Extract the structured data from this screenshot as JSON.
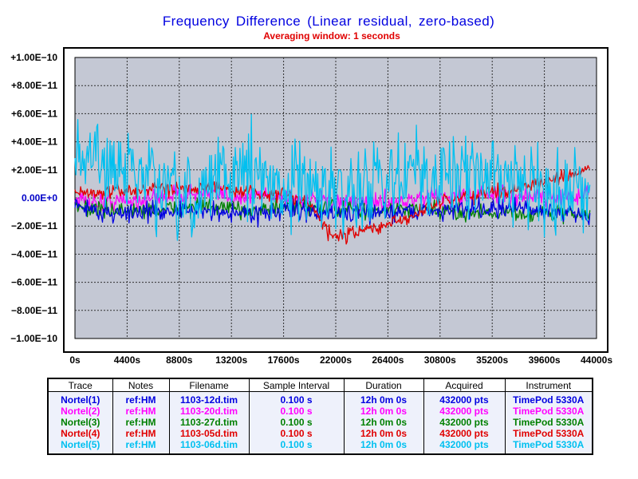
{
  "chart_data": {
    "type": "line",
    "title": "Frequency Difference (Linear residual, zero-based)",
    "subtitle": "Averaging window: 1 seconds",
    "xlabel": "",
    "ylabel": "",
    "xlim": [
      0,
      44000
    ],
    "ylim": [
      -1e-10,
      1e-10
    ],
    "x_ticks": [
      "0s",
      "4400s",
      "8800s",
      "13200s",
      "17600s",
      "22000s",
      "26400s",
      "30800s",
      "35200s",
      "39600s",
      "44000s"
    ],
    "y_ticks": [
      "+1.00E−10",
      "+8.00E−11",
      "+6.00E−11",
      "+4.00E−11",
      "+2.00E−11",
      "0.00E+0",
      "−2.00E−11",
      "−4.00E−11",
      "−6.00E−11",
      "−8.00E−11",
      "−1.00E−10"
    ],
    "grid": true,
    "plot_background": "#c4c8d4",
    "series": [
      {
        "name": "Nortel(1)",
        "color": "#0000e0",
        "x": [
          0,
          2000,
          4000,
          6000,
          8000,
          10000,
          12000,
          14000,
          16000,
          18000,
          20000,
          22000,
          24000,
          26000,
          28000,
          30000,
          32000,
          34000,
          36000,
          38000,
          40000,
          42000,
          43500
        ],
        "values": [
          -5e-12,
          -1e-11,
          -1.1e-11,
          -1e-11,
          -9e-12,
          -9e-12,
          -1e-11,
          -1.1e-11,
          -1e-11,
          -9e-12,
          -1e-11,
          -1.1e-11,
          -1e-11,
          -1e-11,
          -9e-12,
          -9e-12,
          -8e-12,
          -7e-12,
          -7e-12,
          -8e-12,
          -9e-12,
          -1e-11,
          -1.5e-11
        ],
        "noise": 3.5e-12
      },
      {
        "name": "Nortel(2)",
        "color": "#ff00ff",
        "x": [
          0,
          2000,
          4000,
          6000,
          8000,
          10000,
          12000,
          14000,
          16000,
          18000,
          20000,
          22000,
          24000,
          26000,
          28000,
          30000,
          32000,
          34000,
          36000,
          38000,
          40000,
          42000,
          43500
        ],
        "values": [
          -1e-12,
          -3e-12,
          -2e-12,
          -1e-12,
          2e-12,
          3e-12,
          2e-12,
          1e-12,
          2e-12,
          1e-12,
          -2e-12,
          -4e-12,
          -4e-12,
          -3e-12,
          -2e-12,
          0.0,
          1e-12,
          2e-12,
          2e-12,
          1e-12,
          2e-12,
          1e-12,
          3e-12
        ],
        "noise": 3.5e-12
      },
      {
        "name": "Nortel(3)",
        "color": "#008000",
        "x": [
          0,
          2000,
          4000,
          6000,
          8000,
          10000,
          12000,
          14000,
          16000,
          18000,
          20000,
          22000,
          24000,
          26000,
          28000,
          30000,
          32000,
          34000,
          36000,
          38000,
          40000,
          42000,
          43500
        ],
        "values": [
          -6e-12,
          -8e-12,
          -9e-12,
          -9e-12,
          -8e-12,
          -6e-12,
          -7e-12,
          -8e-12,
          -8e-12,
          -7e-12,
          -6e-12,
          -7e-12,
          -9e-12,
          -9e-12,
          -8e-12,
          -9e-12,
          -1e-11,
          -1e-11,
          -1e-11,
          -1.1e-11,
          -1.1e-11,
          -1.1e-11,
          -1.2e-11
        ],
        "noise": 3e-12
      },
      {
        "name": "Nortel(4)",
        "color": "#e00000",
        "x": [
          0,
          2000,
          4000,
          6000,
          8000,
          10000,
          12000,
          14000,
          16000,
          18000,
          20000,
          21000,
          22000,
          23000,
          24000,
          26000,
          28000,
          30000,
          32000,
          34000,
          36000,
          38000,
          40000,
          42000,
          43500
        ],
        "values": [
          3e-12,
          4e-12,
          5e-12,
          6e-12,
          7e-12,
          8e-12,
          7e-12,
          5e-12,
          3e-12,
          2e-12,
          -5e-12,
          -2.2e-11,
          -2.8e-11,
          -2.6e-11,
          -2.4e-11,
          -2e-11,
          -1.5e-11,
          -5e-12,
          0.0,
          3e-12,
          5e-12,
          9e-12,
          1.2e-11,
          1.6e-11,
          2.2e-11
        ],
        "noise": 2.5e-12
      },
      {
        "name": "Nortel(5)",
        "color": "#00c0f0",
        "x": [
          0,
          2000,
          4000,
          6000,
          8000,
          9000,
          10000,
          12000,
          14000,
          16000,
          18000,
          20000,
          22000,
          24000,
          26000,
          28000,
          30000,
          32000,
          34000,
          36000,
          38000,
          40000,
          42000,
          43500
        ],
        "values": [
          2.5e-11,
          2.5e-11,
          2.2e-11,
          1.5e-11,
          5e-12,
          -1e-11,
          0.0,
          1.5e-11,
          1.8e-11,
          1.5e-11,
          1.5e-11,
          1e-11,
          2e-12,
          8e-12,
          1.5e-11,
          1.5e-11,
          1.5e-11,
          2e-11,
          1.8e-11,
          1.5e-11,
          1.2e-11,
          1e-11,
          5e-12,
          8e-12
        ],
        "noise": 1.5e-11
      }
    ]
  },
  "legend_table": {
    "headers": [
      "Trace",
      "Notes",
      "Filename",
      "Sample Interval",
      "Duration",
      "Acquired",
      "Instrument"
    ],
    "rows": [
      {
        "trace": "Nortel(1)",
        "notes": "ref:HM",
        "filename": "1103-12d.tim",
        "interval": "0.100 s",
        "duration": "12h 0m 0s",
        "acquired": "432000 pts",
        "instrument": "TimePod 5330A",
        "color": "#0000e0"
      },
      {
        "trace": "Nortel(2)",
        "notes": "ref:HM",
        "filename": "1103-20d.tim",
        "interval": "0.100 s",
        "duration": "12h 0m 0s",
        "acquired": "432000 pts",
        "instrument": "TimePod 5330A",
        "color": "#ff00ff"
      },
      {
        "trace": "Nortel(3)",
        "notes": "ref:HM",
        "filename": "1103-27d.tim",
        "interval": "0.100 s",
        "duration": "12h 0m 0s",
        "acquired": "432000 pts",
        "instrument": "TimePod 5330A",
        "color": "#008000"
      },
      {
        "trace": "Nortel(4)",
        "notes": "ref:HM",
        "filename": "1103-05d.tim",
        "interval": "0.100 s",
        "duration": "12h 0m 0s",
        "acquired": "432000 pts",
        "instrument": "TimePod 5330A",
        "color": "#e00000"
      },
      {
        "trace": "Nortel(5)",
        "notes": "ref:HM",
        "filename": "1103-06d.tim",
        "interval": "0.100 s",
        "duration": "12h 0m 0s",
        "acquired": "432000 pts",
        "instrument": "TimePod 5330A",
        "color": "#00c0f0"
      }
    ]
  }
}
